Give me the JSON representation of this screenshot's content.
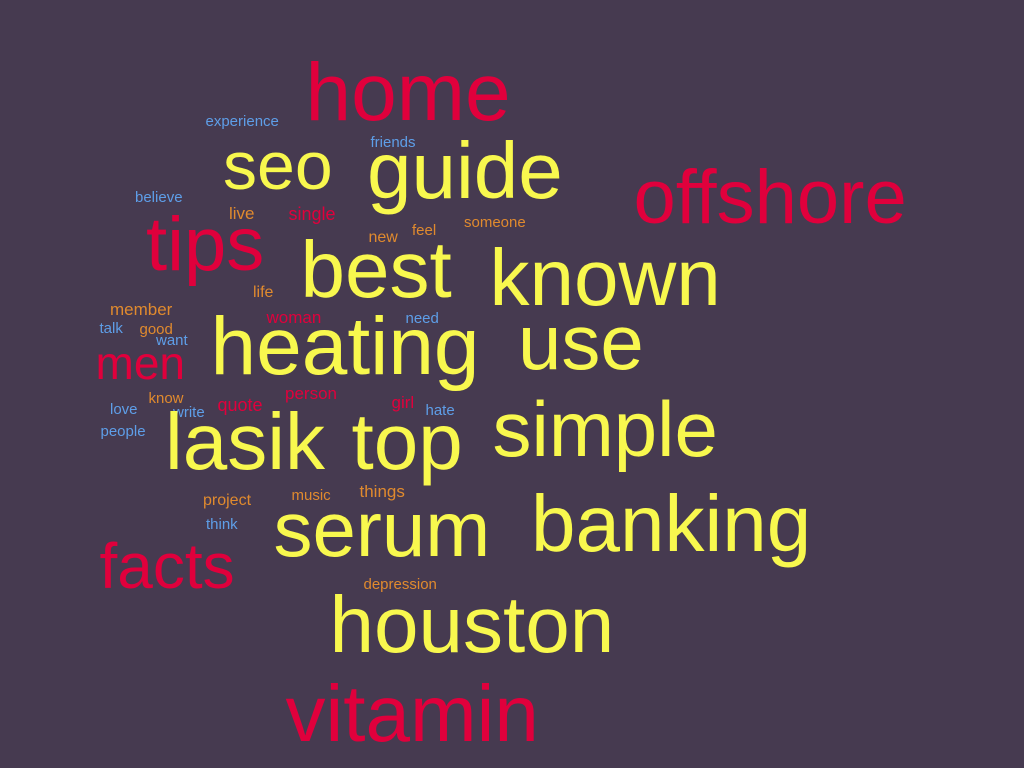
{
  "palette": {
    "background": "#463a50",
    "yellow": "#f8f84e",
    "red": "#e0003c",
    "orange": "#e08a2e",
    "blue": "#5e9ee8"
  },
  "words": [
    {
      "text": "home",
      "color": "red"
    },
    {
      "text": "experience",
      "color": "blue"
    },
    {
      "text": "friends",
      "color": "blue"
    },
    {
      "text": "seo",
      "color": "yellow"
    },
    {
      "text": "guide",
      "color": "yellow"
    },
    {
      "text": "offshore",
      "color": "red"
    },
    {
      "text": "believe",
      "color": "blue"
    },
    {
      "text": "live",
      "color": "orange"
    },
    {
      "text": "single",
      "color": "red"
    },
    {
      "text": "someone",
      "color": "orange"
    },
    {
      "text": "feel",
      "color": "orange"
    },
    {
      "text": "new",
      "color": "orange"
    },
    {
      "text": "tips",
      "color": "red"
    },
    {
      "text": "best",
      "color": "yellow"
    },
    {
      "text": "known",
      "color": "yellow"
    },
    {
      "text": "life",
      "color": "orange"
    },
    {
      "text": "member",
      "color": "orange"
    },
    {
      "text": "talk",
      "color": "blue"
    },
    {
      "text": "good",
      "color": "orange"
    },
    {
      "text": "want",
      "color": "blue"
    },
    {
      "text": "woman",
      "color": "red"
    },
    {
      "text": "need",
      "color": "blue"
    },
    {
      "text": "men",
      "color": "red"
    },
    {
      "text": "heating",
      "color": "yellow"
    },
    {
      "text": "use",
      "color": "yellow"
    },
    {
      "text": "know",
      "color": "orange"
    },
    {
      "text": "person",
      "color": "red"
    },
    {
      "text": "girl",
      "color": "red"
    },
    {
      "text": "love",
      "color": "blue"
    },
    {
      "text": "write",
      "color": "blue"
    },
    {
      "text": "quote",
      "color": "red"
    },
    {
      "text": "hate",
      "color": "blue"
    },
    {
      "text": "people",
      "color": "blue"
    },
    {
      "text": "lasik",
      "color": "yellow"
    },
    {
      "text": "top",
      "color": "yellow"
    },
    {
      "text": "simple",
      "color": "yellow"
    },
    {
      "text": "project",
      "color": "orange"
    },
    {
      "text": "music",
      "color": "orange"
    },
    {
      "text": "things",
      "color": "orange"
    },
    {
      "text": "think",
      "color": "blue"
    },
    {
      "text": "serum",
      "color": "yellow"
    },
    {
      "text": "banking",
      "color": "yellow"
    },
    {
      "text": "facts",
      "color": "red"
    },
    {
      "text": "depression",
      "color": "orange"
    },
    {
      "text": "houston",
      "color": "yellow"
    },
    {
      "text": "vitamin",
      "color": "red"
    }
  ]
}
